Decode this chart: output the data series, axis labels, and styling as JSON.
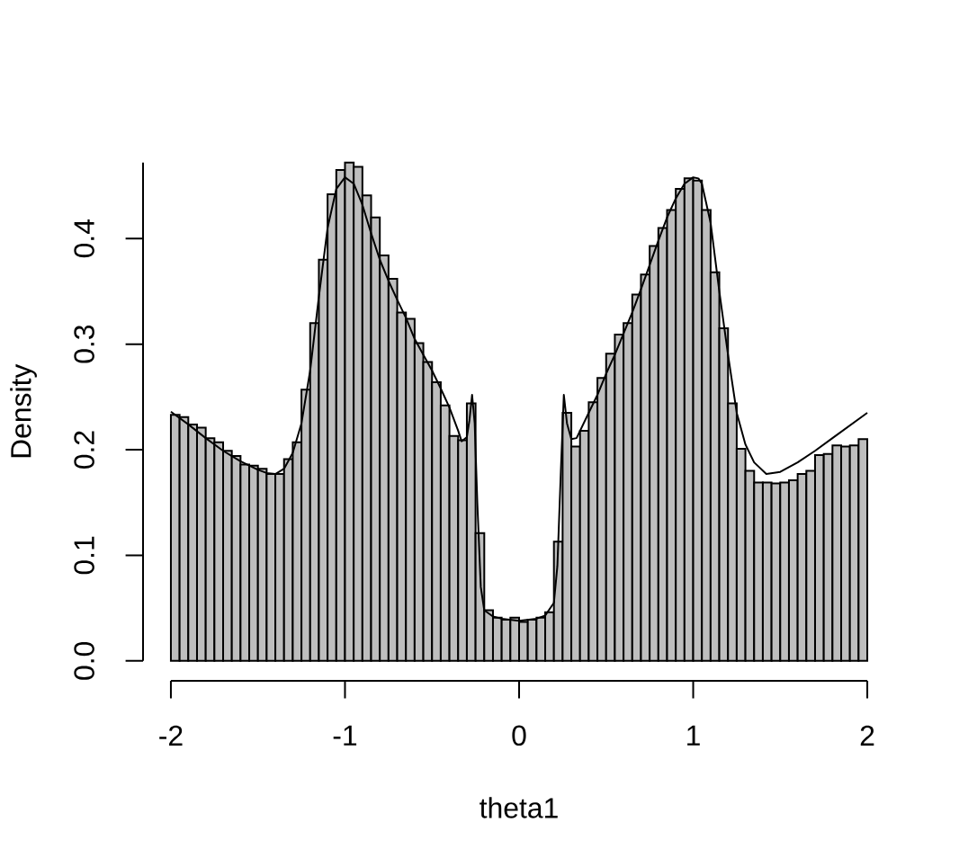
{
  "chart_data": {
    "type": "histogram",
    "xlabel": "theta1",
    "ylabel": "Density",
    "xlim": [
      -2,
      2
    ],
    "ylim": [
      0,
      0.472
    ],
    "xticks": [
      -2,
      -1,
      0,
      1,
      2
    ],
    "yticks": [
      {
        "value": 0,
        "label": "0.0"
      },
      0.1,
      0.2,
      0.3,
      0.4
    ],
    "series": [
      {
        "type": "histogram",
        "color": "#bebebe",
        "bins": [
          -2,
          -1.95,
          -1.9,
          -1.85,
          -1.8,
          -1.75,
          -1.7,
          -1.65,
          -1.6,
          -1.55,
          -1.5,
          -1.45,
          -1.4,
          -1.35,
          -1.3,
          -1.25,
          -1.2,
          -1.15,
          -1.1,
          -1.05,
          -1,
          -0.95,
          -0.9,
          -0.85,
          -0.8,
          -0.75,
          -0.7,
          -0.65,
          -0.6,
          -0.55,
          -0.5,
          -0.45,
          -0.4,
          -0.35,
          -0.3,
          -0.25,
          -0.2,
          -0.15,
          -0.1,
          -0.05,
          0,
          0.05,
          0.1,
          0.15,
          0.2,
          0.25,
          0.3,
          0.35,
          0.4,
          0.45,
          0.5,
          0.55,
          0.6,
          0.65,
          0.7,
          0.75,
          0.8,
          0.85,
          0.9,
          0.95,
          1,
          1.05,
          1.1,
          1.15,
          1.2,
          1.25,
          1.3,
          1.35,
          1.4,
          1.45,
          1.5,
          1.55,
          1.6,
          1.65,
          1.7,
          1.75,
          1.8,
          1.85,
          1.9,
          1.95,
          2
        ],
        "values": [
          0.233,
          0.231,
          0.224,
          0.221,
          0.211,
          0.207,
          0.199,
          0.194,
          0.186,
          0.185,
          0.182,
          0.177,
          0.177,
          0.191,
          0.207,
          0.257,
          0.32,
          0.38,
          0.442,
          0.465,
          0.472,
          0.468,
          0.441,
          0.42,
          0.384,
          0.362,
          0.33,
          0.324,
          0.301,
          0.283,
          0.264,
          0.242,
          0.213,
          0.209,
          0.244,
          0.121,
          0.048,
          0.041,
          0.039,
          0.041,
          0.037,
          0.039,
          0.041,
          0.046,
          0.113,
          0.235,
          0.203,
          0.218,
          0.245,
          0.268,
          0.291,
          0.309,
          0.32,
          0.347,
          0.366,
          0.393,
          0.41,
          0.427,
          0.447,
          0.457,
          0.455,
          0.427,
          0.368,
          0.315,
          0.244,
          0.201,
          0.18,
          0.169,
          0.169,
          0.168,
          0.169,
          0.171,
          0.177,
          0.18,
          0.195,
          0.196,
          0.204,
          0.203,
          0.204,
          0.21
        ]
      },
      {
        "type": "line",
        "color": "#000000",
        "x": [
          -2,
          -1.9,
          -1.8,
          -1.7,
          -1.6,
          -1.5,
          -1.45,
          -1.4,
          -1.35,
          -1.3,
          -1.25,
          -1.2,
          -1.15,
          -1.1,
          -1.05,
          -1,
          -0.95,
          -0.9,
          -0.85,
          -0.8,
          -0.75,
          -0.7,
          -0.65,
          -0.6,
          -0.55,
          -0.5,
          -0.45,
          -0.4,
          -0.35,
          -0.33,
          -0.3,
          -0.285,
          -0.27,
          -0.255,
          -0.24,
          -0.22,
          -0.2,
          -0.15,
          -0.1,
          0,
          0.1,
          0.15,
          0.2,
          0.22,
          0.24,
          0.257,
          0.275,
          0.3,
          0.33,
          0.4,
          0.45,
          0.5,
          0.55,
          0.6,
          0.65,
          0.7,
          0.75,
          0.8,
          0.85,
          0.9,
          0.95,
          1,
          1.03,
          1.05,
          1.1,
          1.15,
          1.2,
          1.25,
          1.3,
          1.35,
          1.42,
          1.5,
          1.6,
          1.7,
          1.8,
          1.9,
          2
        ],
        "values": [
          0.236,
          0.224,
          0.211,
          0.199,
          0.189,
          0.181,
          0.178,
          0.177,
          0.182,
          0.197,
          0.225,
          0.275,
          0.345,
          0.41,
          0.447,
          0.458,
          0.452,
          0.432,
          0.405,
          0.38,
          0.36,
          0.342,
          0.325,
          0.305,
          0.29,
          0.275,
          0.258,
          0.24,
          0.218,
          0.208,
          0.212,
          0.228,
          0.252,
          0.225,
          0.15,
          0.07,
          0.048,
          0.042,
          0.04,
          0.038,
          0.04,
          0.043,
          0.055,
          0.09,
          0.18,
          0.252,
          0.225,
          0.21,
          0.211,
          0.235,
          0.252,
          0.272,
          0.29,
          0.31,
          0.33,
          0.352,
          0.375,
          0.398,
          0.42,
          0.438,
          0.452,
          0.458,
          0.457,
          0.452,
          0.415,
          0.35,
          0.29,
          0.235,
          0.205,
          0.188,
          0.177,
          0.179,
          0.188,
          0.199,
          0.211,
          0.223,
          0.235
        ]
      }
    ]
  }
}
